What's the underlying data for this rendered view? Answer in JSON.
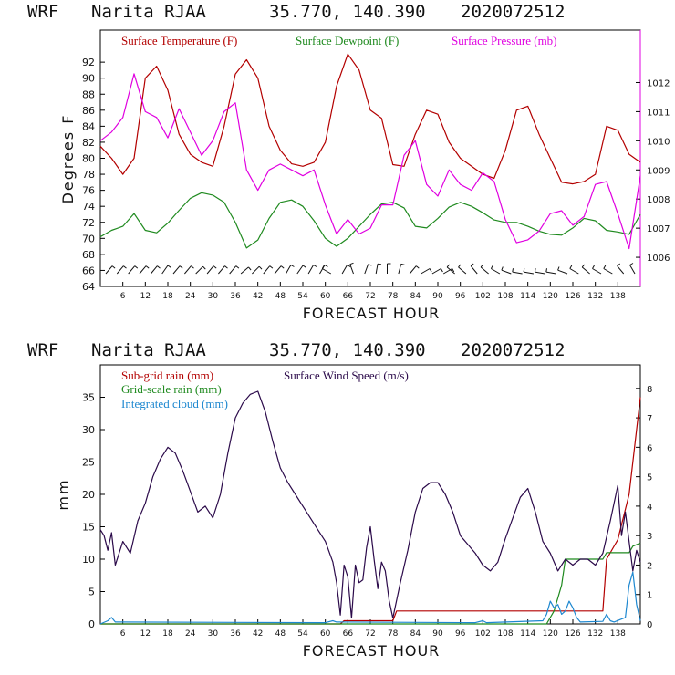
{
  "chart_data": [
    {
      "type": "line",
      "header": {
        "model": "WRF",
        "station": "Narita RJAA",
        "coords": "35.770, 140.390",
        "init": "2020072512"
      },
      "xlabel": "FORECAST HOUR",
      "ylabel": "Degrees F",
      "xlim": [
        0,
        144
      ],
      "ylim": [
        64,
        96
      ],
      "y2lim": [
        1005,
        1013.8
      ],
      "x_ticks": [
        6,
        12,
        18,
        24,
        30,
        36,
        42,
        48,
        54,
        60,
        66,
        72,
        78,
        84,
        90,
        96,
        102,
        108,
        114,
        120,
        126,
        132,
        138
      ],
      "y_ticks": [
        64,
        66,
        68,
        70,
        72,
        74,
        76,
        78,
        80,
        82,
        84,
        86,
        88,
        90,
        92
      ],
      "y2_ticks": [
        1006,
        1007,
        1008,
        1009,
        1010,
        1011,
        1012
      ],
      "series": [
        {
          "name": "Surface Temperature (F)",
          "color": "#b30000",
          "axis": "left",
          "x": [
            0,
            3,
            6,
            9,
            12,
            15,
            18,
            21,
            24,
            27,
            30,
            33,
            36,
            39,
            42,
            45,
            48,
            51,
            54,
            57,
            60,
            63,
            66,
            69,
            72,
            75,
            78,
            81,
            84,
            87,
            90,
            93,
            96,
            99,
            102,
            105,
            108,
            111,
            114,
            117,
            120,
            123,
            126,
            129,
            132,
            135,
            138,
            141,
            144
          ],
          "values": [
            81.5,
            80,
            78,
            80,
            90,
            91.5,
            88.5,
            83,
            80.5,
            79.5,
            79,
            84,
            90.5,
            92.3,
            90,
            84,
            81,
            79.3,
            79,
            79.5,
            82,
            89,
            93,
            91,
            86,
            85,
            79.2,
            79,
            83,
            86,
            85.5,
            82,
            80,
            79,
            78,
            77.5,
            81,
            86,
            86.5,
            83,
            80,
            77,
            76.8,
            77.1,
            78,
            84,
            83.5,
            80.5,
            79.5
          ]
        },
        {
          "name": "Surface Dewpoint (F)",
          "color": "#1f8a1f",
          "axis": "left",
          "x": [
            0,
            3,
            6,
            9,
            12,
            15,
            18,
            21,
            24,
            27,
            30,
            33,
            36,
            39,
            42,
            45,
            48,
            51,
            54,
            57,
            60,
            63,
            66,
            69,
            72,
            75,
            78,
            81,
            84,
            87,
            90,
            93,
            96,
            99,
            102,
            105,
            108,
            111,
            114,
            117,
            120,
            123,
            126,
            129,
            132,
            135,
            138,
            141,
            144
          ],
          "values": [
            70.2,
            71,
            71.5,
            73.1,
            71,
            70.7,
            71.9,
            73.5,
            75,
            75.7,
            75.4,
            74.5,
            72,
            68.8,
            69.8,
            72.5,
            74.5,
            74.8,
            74,
            72.2,
            70,
            69,
            70,
            71.5,
            73,
            74.3,
            74.5,
            73.8,
            71.5,
            71.3,
            72.5,
            73.9,
            74.5,
            74,
            73.2,
            72.3,
            72,
            72,
            71.5,
            70.9,
            70.5,
            70.4,
            71.3,
            72.5,
            72.2,
            71,
            70.8,
            70.5,
            73
          ]
        },
        {
          "name": "Surface Pressure (mb)",
          "color": "#e000e0",
          "axis": "right",
          "x": [
            0,
            3,
            6,
            9,
            12,
            15,
            18,
            21,
            24,
            27,
            30,
            33,
            36,
            39,
            42,
            45,
            48,
            51,
            54,
            57,
            60,
            63,
            66,
            69,
            72,
            75,
            78,
            81,
            84,
            87,
            90,
            93,
            96,
            99,
            102,
            105,
            108,
            111,
            114,
            117,
            120,
            123,
            126,
            129,
            132,
            135,
            138,
            141,
            144
          ],
          "values": [
            1010,
            1010.3,
            1010.8,
            1012.3,
            1011,
            1010.8,
            1010.1,
            1011.1,
            1010.3,
            1009.5,
            1010,
            1011,
            1011.3,
            1009,
            1008.3,
            1009,
            1009.2,
            1009,
            1008.8,
            1009,
            1007.8,
            1006.8,
            1007.3,
            1006.8,
            1007,
            1007.8,
            1007.8,
            1009.5,
            1010,
            1008.5,
            1008.1,
            1009,
            1008.5,
            1008.3,
            1008.9,
            1008.6,
            1007.3,
            1006.5,
            1006.6,
            1006.9,
            1007.5,
            1007.6,
            1007.1,
            1007.4,
            1008.5,
            1008.6,
            1007.5,
            1006.3,
            1008.8
          ]
        }
      ],
      "wind_barb_label": "surface wind barbs (every 3 h)"
    },
    {
      "type": "line",
      "header": {
        "model": "WRF",
        "station": "Narita RJAA",
        "coords": "35.770, 140.390",
        "init": "2020072512"
      },
      "xlabel": "FORECAST HOUR",
      "ylabel": "mm",
      "xlim": [
        0,
        144
      ],
      "ylim": [
        0,
        40
      ],
      "y2lim": [
        0,
        8.8
      ],
      "x_ticks": [
        6,
        12,
        18,
        24,
        30,
        36,
        42,
        48,
        54,
        60,
        66,
        72,
        78,
        84,
        90,
        96,
        102,
        108,
        114,
        120,
        126,
        132,
        138
      ],
      "y_ticks": [
        0,
        5,
        10,
        15,
        20,
        25,
        30,
        35
      ],
      "y2_ticks": [
        0,
        1,
        2,
        3,
        4,
        5,
        6,
        7,
        8
      ],
      "series": [
        {
          "name": "Sub-grid rain (mm)",
          "color": "#b30000",
          "axis": "left",
          "x": [
            0,
            64,
            65,
            66,
            72,
            78,
            79,
            90,
            108,
            120,
            123,
            124,
            134,
            135,
            138,
            141,
            144
          ],
          "values": [
            0,
            0,
            0.5,
            0.5,
            0.5,
            0.5,
            2,
            2,
            2,
            2,
            2,
            2,
            2,
            10,
            13,
            20,
            35
          ]
        },
        {
          "name": "Grid-scale rain (mm)",
          "color": "#1f8a1f",
          "axis": "left",
          "x": [
            0,
            119,
            121,
            123,
            124,
            126,
            134,
            135,
            138,
            141,
            142,
            144
          ],
          "values": [
            0,
            0,
            2,
            6,
            10,
            10,
            10,
            11,
            11,
            11,
            12,
            12.5
          ]
        },
        {
          "name": "Integrated cloud (mm)",
          "color": "#1e88d0",
          "axis": "left",
          "x": [
            0,
            2,
            3,
            4,
            60,
            62,
            63,
            100,
            102,
            103,
            118,
            119,
            120,
            121,
            122,
            123,
            124,
            125,
            126,
            127,
            128,
            134,
            135,
            136,
            137,
            140,
            141,
            142,
            143,
            144
          ],
          "values": [
            0,
            0.5,
            1,
            0.3,
            0.2,
            0.5,
            0.3,
            0.2,
            0.5,
            0.2,
            0.5,
            1.5,
            3.5,
            2.5,
            3,
            1.5,
            2,
            3.5,
            2.5,
            1,
            0.3,
            0.4,
            1.5,
            0.5,
            0.3,
            1,
            6,
            8,
            3,
            0.5
          ]
        },
        {
          "name": "Surface Wind Speed (m/s)",
          "color": "#2b0a4a",
          "axis": "right",
          "x": [
            0,
            1,
            2,
            3,
            4,
            6,
            8,
            10,
            12,
            14,
            16,
            18,
            20,
            22,
            24,
            26,
            28,
            30,
            32,
            34,
            36,
            38,
            40,
            42,
            44,
            46,
            48,
            50,
            52,
            54,
            56,
            58,
            60,
            62,
            63,
            64,
            65,
            66,
            67,
            68,
            69,
            70,
            71,
            72,
            73,
            74,
            75,
            76,
            77,
            78,
            80,
            82,
            84,
            86,
            88,
            90,
            92,
            94,
            96,
            98,
            100,
            102,
            104,
            106,
            108,
            110,
            112,
            114,
            116,
            118,
            120,
            122,
            124,
            126,
            128,
            130,
            132,
            134,
            136,
            138,
            139,
            140,
            141,
            142,
            143,
            144
          ],
          "values": [
            3.2,
            3.0,
            2.5,
            3.1,
            2.0,
            2.8,
            2.4,
            3.5,
            4.1,
            5.0,
            5.6,
            6.0,
            5.8,
            5.2,
            4.5,
            3.8,
            4.0,
            3.6,
            4.4,
            5.8,
            7.0,
            7.5,
            7.8,
            7.9,
            7.2,
            6.2,
            5.3,
            4.8,
            4.4,
            4.0,
            3.6,
            3.2,
            2.8,
            2.1,
            1.4,
            0.3,
            2.0,
            1.6,
            0.2,
            2.0,
            1.4,
            1.5,
            2.6,
            3.3,
            2.2,
            1.2,
            2.1,
            1.8,
            0.8,
            0.2,
            1.4,
            2.5,
            3.8,
            4.6,
            4.8,
            4.8,
            4.4,
            3.8,
            3.0,
            2.7,
            2.4,
            2.0,
            1.8,
            2.1,
            2.9,
            3.6,
            4.3,
            4.6,
            3.8,
            2.8,
            2.4,
            1.8,
            2.2,
            2.0,
            2.2,
            2.2,
            2.0,
            2.4,
            3.5,
            4.7,
            3.0,
            3.8,
            2.8,
            1.8,
            2.5,
            2.1
          ]
        }
      ]
    }
  ]
}
